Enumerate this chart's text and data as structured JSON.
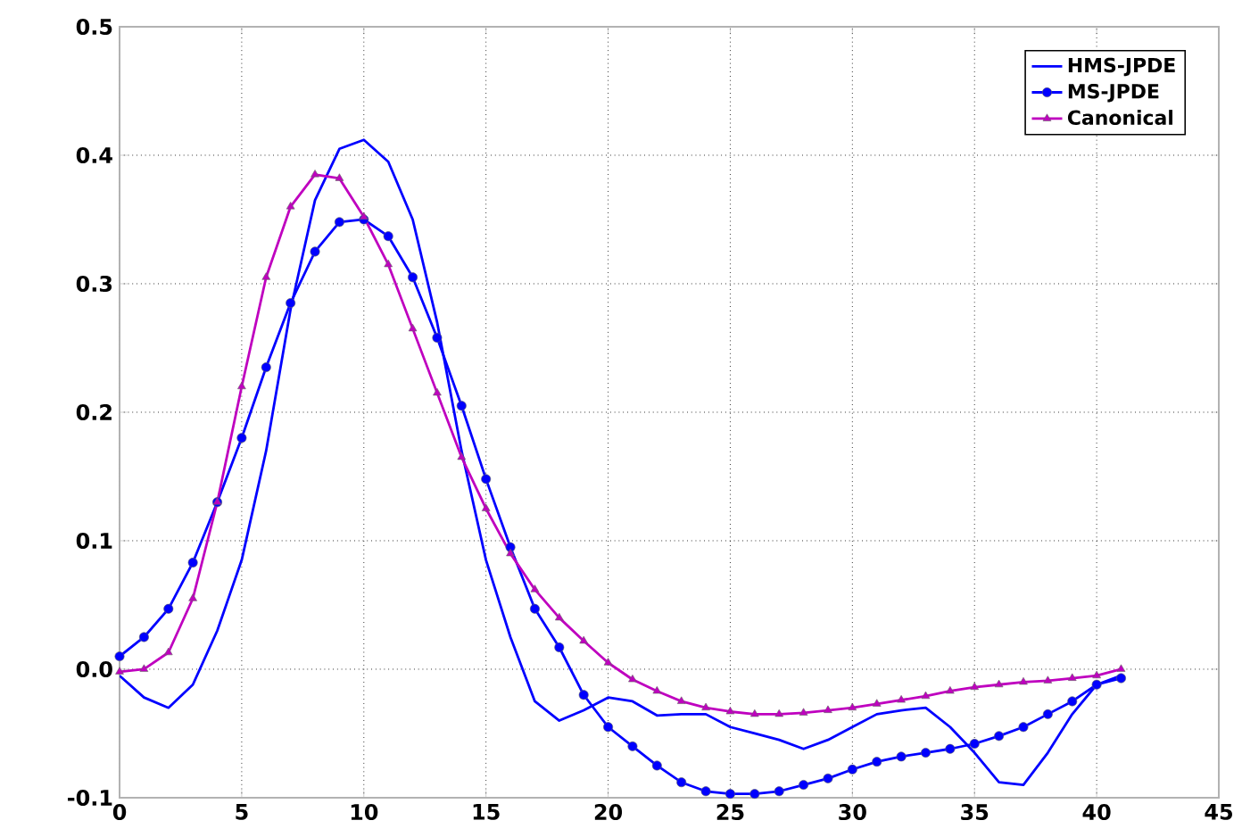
{
  "chart_data": {
    "type": "line",
    "x": [
      0,
      1,
      2,
      3,
      4,
      5,
      6,
      7,
      8,
      9,
      10,
      11,
      12,
      13,
      14,
      15,
      16,
      17,
      18,
      19,
      20,
      21,
      22,
      23,
      24,
      25,
      26,
      27,
      28,
      29,
      30,
      31,
      32,
      33,
      34,
      35,
      36,
      37,
      38,
      39,
      40,
      41
    ],
    "series": [
      {
        "name": "HMS-JPDE",
        "color": "#0000ff",
        "marker": "none",
        "values": [
          -0.005,
          -0.022,
          -0.03,
          -0.012,
          0.03,
          0.085,
          0.17,
          0.28,
          0.365,
          0.405,
          0.412,
          0.395,
          0.35,
          0.27,
          0.17,
          0.085,
          0.025,
          -0.025,
          -0.04,
          -0.032,
          -0.022,
          -0.025,
          -0.036,
          -0.035,
          -0.035,
          -0.045,
          -0.05,
          -0.055,
          -0.062,
          -0.055,
          -0.045,
          -0.035,
          -0.032,
          -0.03,
          -0.045,
          -0.065,
          -0.088,
          -0.09,
          -0.065,
          -0.035,
          -0.012,
          -0.005
        ]
      },
      {
        "name": "MS-JPDE",
        "color": "#0000ff",
        "marker": "circle",
        "values": [
          0.01,
          0.025,
          0.047,
          0.083,
          0.13,
          0.18,
          0.235,
          0.285,
          0.325,
          0.348,
          0.35,
          0.337,
          0.305,
          0.258,
          0.205,
          0.148,
          0.095,
          0.047,
          0.017,
          -0.02,
          -0.045,
          -0.06,
          -0.075,
          -0.088,
          -0.095,
          -0.097,
          -0.097,
          -0.095,
          -0.09,
          -0.085,
          -0.078,
          -0.072,
          -0.068,
          -0.065,
          -0.062,
          -0.058,
          -0.052,
          -0.045,
          -0.035,
          -0.025,
          -0.012,
          -0.007
        ]
      },
      {
        "name": "Canonical",
        "color": "#bf00bf",
        "marker": "triangle",
        "values": [
          -0.002,
          0,
          0.013,
          0.055,
          0.13,
          0.22,
          0.305,
          0.36,
          0.385,
          0.382,
          0.352,
          0.315,
          0.265,
          0.215,
          0.165,
          0.125,
          0.09,
          0.062,
          0.04,
          0.022,
          0.005,
          -0.008,
          -0.017,
          -0.025,
          -0.03,
          -0.033,
          -0.035,
          -0.035,
          -0.034,
          -0.032,
          -0.03,
          -0.027,
          -0.024,
          -0.021,
          -0.017,
          -0.014,
          -0.012,
          -0.01,
          -0.009,
          -0.007,
          -0.005,
          0.0
        ]
      }
    ],
    "xlim": [
      0,
      45
    ],
    "xticks": [
      0,
      5,
      10,
      15,
      20,
      25,
      30,
      35,
      40,
      45
    ],
    "ylim": [
      -0.1,
      0.5
    ],
    "yticks": [
      -0.1,
      {
        "value": 0.0,
        "label": "0.0"
      },
      0.1,
      0.2,
      0.3,
      0.4,
      0.5
    ],
    "grid": true,
    "legend": "top right",
    "line_style": "solid"
  }
}
